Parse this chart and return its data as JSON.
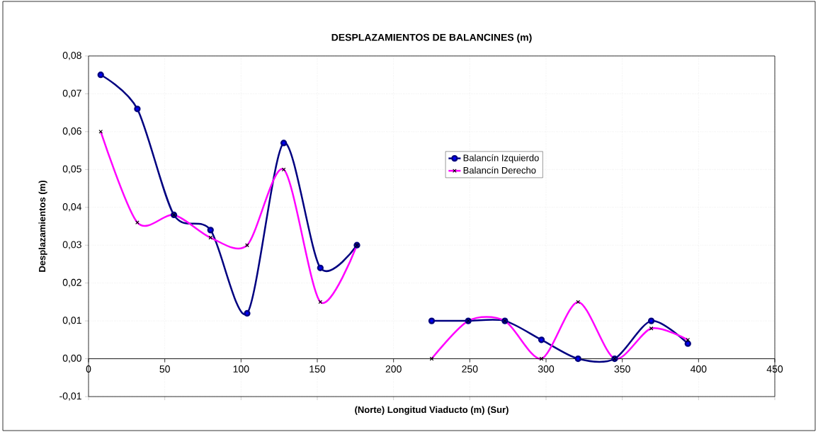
{
  "chart_data": {
    "type": "line",
    "title": "DESPLAZAMIENTOS  DE  BALANCINES (m)",
    "xlabel": "(Norte)          Longitud  Viaducto (m)          (Sur)",
    "ylabel": "Desplazamientos (m)",
    "x": [
      8,
      32,
      56,
      80,
      104,
      128,
      152,
      176,
      200,
      225,
      249,
      273,
      297,
      321,
      345,
      369,
      393
    ],
    "series": [
      {
        "name": "Balancín Izquierdo",
        "color": "#000080",
        "marker": "circle",
        "values": [
          0.075,
          0.066,
          0.038,
          0.034,
          0.012,
          0.057,
          0.024,
          0.03,
          null,
          0.01,
          0.01,
          0.01,
          0.005,
          0.0,
          0.0,
          0.01,
          0.004
        ]
      },
      {
        "name": "Balancín Derecho",
        "color": "#ff00ff",
        "marker": "cross",
        "values": [
          0.06,
          0.036,
          0.038,
          0.032,
          0.03,
          0.05,
          0.015,
          0.03,
          null,
          0.0,
          0.01,
          0.01,
          0.0,
          0.015,
          0.0,
          0.008,
          0.005
        ]
      }
    ],
    "xlim": [
      0,
      450
    ],
    "xticks": [
      0,
      50,
      100,
      150,
      200,
      250,
      300,
      350,
      400,
      450
    ],
    "ylim": [
      -0.01,
      0.08
    ],
    "yticks": [
      {
        "value": -0.01,
        "label": "-0,01"
      },
      {
        "value": 0,
        "label": "0,00"
      },
      {
        "value": 0.01,
        "label": "0,01"
      },
      {
        "value": 0.02,
        "label": "0,02"
      },
      {
        "value": 0.03,
        "label": "0,03"
      },
      {
        "value": 0.04,
        "label": "0,04"
      },
      {
        "value": 0.05,
        "label": "0,05"
      },
      {
        "value": 0.06,
        "label": "0,06"
      },
      {
        "value": 0.07,
        "label": "0,07"
      },
      {
        "value": 0.08,
        "label": "0,08"
      }
    ],
    "grid": true,
    "legend": "right",
    "line_style": "solid"
  }
}
